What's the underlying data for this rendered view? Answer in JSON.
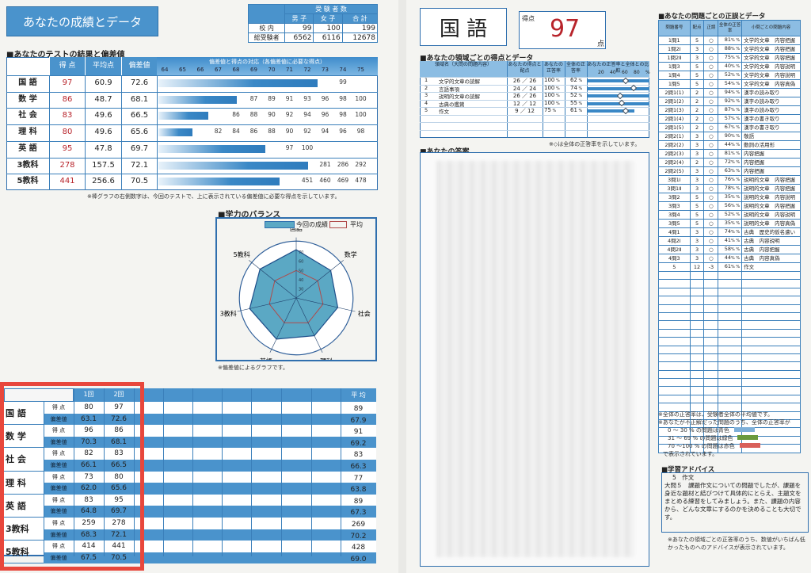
{
  "left": {
    "title": "あなたの成績とデータ",
    "examinees": {
      "title": "受 験 者 数",
      "cols": [
        "男 子",
        "女 子",
        "合 計"
      ],
      "rows": [
        {
          "label": "校 内",
          "values": [
            "99",
            "100",
            "199"
          ]
        },
        {
          "label": "総受験者",
          "values": [
            "6562",
            "6116",
            "12678"
          ]
        }
      ]
    },
    "results": {
      "heading": "■あなたのテストの結果と偏差値",
      "cols": [
        "得 点",
        "平均点",
        "偏差値"
      ],
      "chart_header": "偏差値と得点の対応（各偏差値に必要な得点）",
      "dev_ticks": [
        "64",
        "65",
        "66",
        "67",
        "68",
        "69",
        "70",
        "71",
        "72",
        "73",
        "74",
        "75"
      ],
      "rows": [
        {
          "subject": "国 語",
          "score": "97",
          "avg": "60.9",
          "dev": "72.6",
          "needs": [
            [
              "74",
              "99"
            ]
          ]
        },
        {
          "subject": "数 学",
          "score": "86",
          "avg": "48.7",
          "dev": "68.1",
          "needs": [
            [
              "69",
              "87"
            ],
            [
              "70",
              "89"
            ],
            [
              "71",
              "91"
            ],
            [
              "72",
              "93"
            ],
            [
              "73",
              "96"
            ],
            [
              "74",
              "98"
            ],
            [
              "75",
              "100"
            ]
          ]
        },
        {
          "subject": "社 会",
          "score": "83",
          "avg": "49.6",
          "dev": "66.5",
          "needs": [
            [
              "68",
              "86"
            ],
            [
              "69",
              "88"
            ],
            [
              "70",
              "90"
            ],
            [
              "71",
              "92"
            ],
            [
              "72",
              "94"
            ],
            [
              "73",
              "96"
            ],
            [
              "74",
              "98"
            ],
            [
              "75",
              "100"
            ]
          ]
        },
        {
          "subject": "理 科",
          "score": "80",
          "avg": "49.6",
          "dev": "65.6",
          "needs": [
            [
              "67",
              "82"
            ],
            [
              "68",
              "84"
            ],
            [
              "69",
              "86"
            ],
            [
              "70",
              "88"
            ],
            [
              "71",
              "90"
            ],
            [
              "72",
              "92"
            ],
            [
              "73",
              "94"
            ],
            [
              "74",
              "96"
            ],
            [
              "75",
              "98"
            ]
          ]
        },
        {
          "subject": "英 語",
          "score": "95",
          "avg": "47.8",
          "dev": "69.7",
          "needs": [
            [
              "71",
              "97"
            ],
            [
              "72",
              "100"
            ]
          ]
        },
        {
          "subject": "3教科",
          "score": "278",
          "avg": "157.5",
          "dev": "72.1",
          "needs": [
            [
              "73",
              "281"
            ],
            [
              "74",
              "286"
            ],
            [
              "75",
              "292"
            ]
          ]
        },
        {
          "subject": "5教科",
          "score": "441",
          "avg": "256.6",
          "dev": "70.5",
          "needs": [
            [
              "72",
              "451"
            ],
            [
              "73",
              "460"
            ],
            [
              "74",
              "469"
            ],
            [
              "75",
              "478"
            ]
          ]
        }
      ],
      "note": "※棒グラフの右側数字は、今回のテストで、上に表示されている偏差値に必要な得点を示しています。"
    },
    "balance": {
      "heading": "■学力のバランス",
      "legend_current": "今回の成績",
      "legend_avg": "平均",
      "axes": [
        "国語",
        "数学",
        "社会",
        "理科",
        "英語",
        "3教科",
        "5教科"
      ],
      "current": [
        72.6,
        68.1,
        66.5,
        65.6,
        69.7,
        72.1,
        70.5
      ],
      "average": [
        50,
        50,
        50,
        50,
        50,
        50,
        50
      ],
      "ticks": [
        "30",
        "40",
        "50",
        "60",
        "70"
      ],
      "colors": {
        "current": "#5ba8c4",
        "average": "#b04a4a"
      },
      "note": "※偏差値によるグラフです。"
    },
    "history": {
      "cols": [
        "1回",
        "2回"
      ],
      "avg_label": "平 均",
      "score_label": "得 点",
      "dev_label": "偏差値",
      "rows": [
        {
          "subject": "国 語",
          "scores": [
            "80",
            "97"
          ],
          "devs": [
            "63.1",
            "72.6"
          ],
          "avg_score": "89",
          "avg_dev": "67.9"
        },
        {
          "subject": "数 学",
          "scores": [
            "96",
            "86"
          ],
          "devs": [
            "70.3",
            "68.1"
          ],
          "avg_score": "91",
          "avg_dev": "69.2"
        },
        {
          "subject": "社 会",
          "scores": [
            "82",
            "83"
          ],
          "devs": [
            "66.1",
            "66.5"
          ],
          "avg_score": "83",
          "avg_dev": "66.3"
        },
        {
          "subject": "理 科",
          "scores": [
            "73",
            "80"
          ],
          "devs": [
            "62.0",
            "65.6"
          ],
          "avg_score": "77",
          "avg_dev": "63.8"
        },
        {
          "subject": "英 語",
          "scores": [
            "83",
            "95"
          ],
          "devs": [
            "64.8",
            "69.7"
          ],
          "avg_score": "89",
          "avg_dev": "67.3"
        },
        {
          "subject": "3教科",
          "scores": [
            "259",
            "278"
          ],
          "devs": [
            "68.3",
            "72.1"
          ],
          "avg_score": "269",
          "avg_dev": "70.2"
        },
        {
          "subject": "5教科",
          "scores": [
            "414",
            "441"
          ],
          "devs": [
            "67.5",
            "70.5"
          ],
          "avg_score": "428",
          "avg_dev": "69.0"
        }
      ]
    }
  },
  "right": {
    "subject": "国 語",
    "score_label": "得点",
    "score": "97",
    "score_unit": "点",
    "domains": {
      "heading": "■あなたの領域ごとの得点とデータ",
      "cols": [
        "領域名（大問の問題内容）",
        "あなたの得点と配点",
        "あなたの正答率",
        "全体の正答率",
        "あなたの正答率と全体との比較"
      ],
      "scale": [
        "20",
        "40",
        "60",
        "80",
        "%"
      ],
      "rows": [
        {
          "no": "1",
          "name": "文学的文章の読解",
          "pts": "26 ／ 26",
          "mine": 100,
          "all": 62
        },
        {
          "no": "2",
          "name": "言語事項",
          "pts": "24 ／ 24",
          "mine": 100,
          "all": 74
        },
        {
          "no": "3",
          "name": "説明的文章の読解",
          "pts": "26 ／ 26",
          "mine": 100,
          "all": 52
        },
        {
          "no": "4",
          "name": "古典の鑑賞",
          "pts": "12 ／ 12",
          "mine": 100,
          "all": 55
        },
        {
          "no": "5",
          "name": "作文",
          "pts": "9 ／ 12",
          "mine": 75,
          "all": 61
        }
      ],
      "note": "※◇は全体の正答率を示しています。"
    },
    "answers_heading": "■あなたの答案",
    "problems": {
      "heading": "■あなたの問題ごとの正誤とデータ",
      "cols": [
        "問題番号",
        "配点",
        "正誤",
        "全体の正答率",
        "小問ごとの問題内容"
      ],
      "rows": [
        [
          "1問1",
          "5",
          "○",
          "81",
          "文学的文章　内容把握"
        ],
        [
          "1問2Ⅰ",
          "3",
          "○",
          "88",
          "文学的文章　内容把握"
        ],
        [
          "1問2Ⅱ",
          "3",
          "○",
          "75",
          "文学的文章　内容把握"
        ],
        [
          "1問3",
          "5",
          "○",
          "40",
          "文学的文章　内容説明"
        ],
        [
          "1問4",
          "5",
          "○",
          "52",
          "文学的文章　内容説明"
        ],
        [
          "1問5",
          "5",
          "○",
          "54",
          "文学的文章　内容真偽"
        ],
        [
          "2問1(1)",
          "2",
          "○",
          "94",
          "漢字の読み取り"
        ],
        [
          "2問1(2)",
          "2",
          "○",
          "92",
          "漢字の読み取り"
        ],
        [
          "2問1(3)",
          "2",
          "○",
          "87",
          "漢字の読み取り"
        ],
        [
          "2問1(4)",
          "2",
          "○",
          "57",
          "漢字の書き取り"
        ],
        [
          "2問1(5)",
          "2",
          "○",
          "67",
          "漢字の書き取り"
        ],
        [
          "2問2(1)",
          "3",
          "○",
          "90",
          "敬語"
        ],
        [
          "2問2(2)",
          "3",
          "○",
          "44",
          "動詞の活用形"
        ],
        [
          "2問2(3)",
          "3",
          "○",
          "81",
          "内容把握"
        ],
        [
          "2問2(4)",
          "2",
          "○",
          "72",
          "内容把握"
        ],
        [
          "2問2(5)",
          "3",
          "○",
          "63",
          "内容把握"
        ],
        [
          "3問1Ⅰ",
          "3",
          "○",
          "76",
          "説明的文章　内容把握"
        ],
        [
          "3問1Ⅱ",
          "3",
          "○",
          "78",
          "説明的文章　内容把握"
        ],
        [
          "3問2",
          "5",
          "○",
          "35",
          "説明的文章　内容説明"
        ],
        [
          "3問3",
          "5",
          "○",
          "56",
          "説明的文章　内容把握"
        ],
        [
          "3問4",
          "5",
          "○",
          "52",
          "説明的文章　内容説明"
        ],
        [
          "3問5",
          "5",
          "○",
          "35",
          "説明的文章　内容真偽"
        ],
        [
          "4問1",
          "3",
          "○",
          "74",
          "古典　歴史的仮名遣い"
        ],
        [
          "4問2Ⅰ",
          "3",
          "○",
          "41",
          "古典　内容説明"
        ],
        [
          "4問2Ⅱ",
          "3",
          "○",
          "58",
          "古典　内容把握"
        ],
        [
          "4問3",
          "3",
          "○",
          "44",
          "古典　内容真偽"
        ],
        [
          "5",
          "12",
          "-3",
          "61",
          "作文"
        ]
      ],
      "pct": "%"
    },
    "notes": {
      "l1": "※全体の正答率は、受験者全体の平均値です。",
      "l2": "※あなたが不正解だった問題のうち、全体の正答率が",
      "r1": "0 ～ 30 % の問題は青色",
      "r2": "31 ～ 69 % の問題は緑色",
      "r3": "70 ～100 % の問題は赤色",
      "l3": "で表示されています。",
      "colors": {
        "blue": "#7fb0d9",
        "green": "#6a9a3e",
        "red": "#d9605a"
      }
    },
    "advice": {
      "heading": "■学習アドバイス",
      "title": "5　作文",
      "body": "大問５　課題作文についての問題でしたが、課題を身近な題材と結びつけて具体的にとらえ、主題文をまとめる練習をしてみましょう。また、課題の内容から、どんな文章にするのかを決めることも大切です。",
      "note": "※あなたの領域ごとの正答率のうち、数値がいちばん低かったものへのアドバイスが表示されています。"
    }
  }
}
